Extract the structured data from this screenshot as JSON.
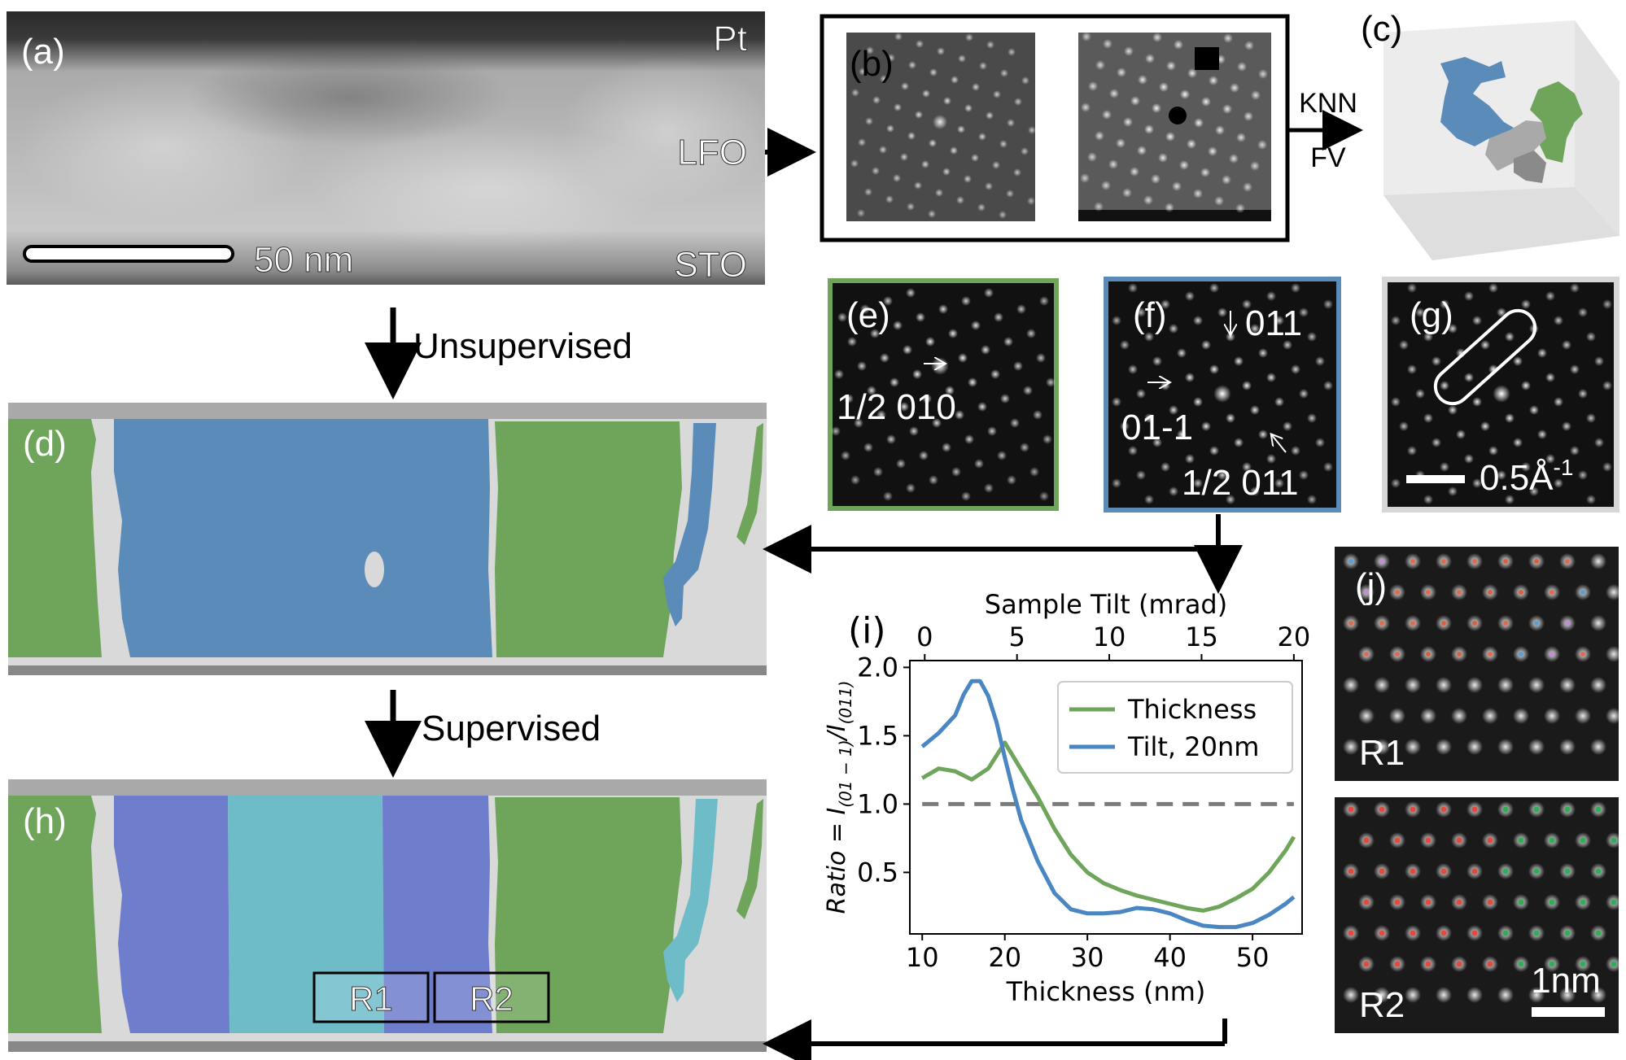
{
  "panels": {
    "a": {
      "tag": "(a)",
      "labels": {
        "pt": "Pt",
        "lfo": "LFO",
        "sto": "STO"
      },
      "scalebar": "50 nm"
    },
    "b": {
      "tag": "(b)",
      "arrow_top": "KNN",
      "arrow_bottom": "FV"
    },
    "c": {
      "tag": "(c)"
    },
    "d": {
      "tag": "(d)",
      "arrow_label": "Unsupervised"
    },
    "e": {
      "tag": "(e)",
      "annotation": "1/2 010"
    },
    "f": {
      "tag": "(f)",
      "annotations": [
        "011",
        "01-1",
        "1/2 011"
      ]
    },
    "g": {
      "tag": "(g)",
      "scalebar_num": "0.5",
      "scalebar_unit": "Å",
      "scalebar_exp": "-1"
    },
    "h": {
      "tag": "(h)",
      "arrow_label": "Supervised",
      "regions": [
        "R1",
        "R2"
      ]
    },
    "i": {
      "tag": "(i)"
    },
    "j": {
      "tag": "(j)",
      "labels": [
        "R1",
        "R2"
      ],
      "scalebar": "1nm"
    }
  },
  "colors": {
    "green": "#6ea55b",
    "blue": "#5b8cb9",
    "purple": "#6f7dcd",
    "cyan": "#6fbcc9",
    "gap": "#d9d9d9",
    "gray_line": "#7a7a7a"
  },
  "chart_data": {
    "type": "line",
    "xlabel": "Thickness (nm)",
    "xlabel_top": "Sample Tilt (mrad)",
    "ylabel_prefix": "Ratio = I",
    "ylabel_num_sub": "(01 − 1)",
    "ylabel_den": "/I",
    "ylabel_den_sub": "(011)",
    "xlim": [
      8.5,
      56
    ],
    "ylim": [
      0.05,
      2.05
    ],
    "x_ticks": [
      10,
      20,
      30,
      40,
      50
    ],
    "y_ticks": [
      0.5,
      1.0,
      1.5,
      2.0
    ],
    "top_ticks_mrad": [
      0,
      5,
      10,
      15,
      20
    ],
    "top_axis_map": {
      "mrad_0_at_thickness": 10.3,
      "mrad_20_at_thickness": 55.0
    },
    "reference_line": {
      "y": 1.0,
      "style": "dashed"
    },
    "legend": {
      "placement": "top-right"
    },
    "series": [
      {
        "name": "Thickness",
        "color": "#6ea55b",
        "x": [
          10,
          12,
          14,
          16,
          18,
          20,
          22,
          24,
          26,
          28,
          30,
          32,
          34,
          36,
          38,
          40,
          42,
          44,
          46,
          48,
          50,
          52,
          54,
          55
        ],
        "y": [
          1.19,
          1.26,
          1.24,
          1.18,
          1.26,
          1.45,
          1.25,
          1.05,
          0.82,
          0.63,
          0.5,
          0.42,
          0.37,
          0.33,
          0.3,
          0.27,
          0.24,
          0.22,
          0.25,
          0.31,
          0.38,
          0.5,
          0.66,
          0.76
        ]
      },
      {
        "name": "Tilt, 20nm",
        "color": "#4a86c1",
        "x": [
          10,
          12,
          14,
          15,
          16,
          17,
          18,
          19,
          20,
          21,
          22,
          24,
          26,
          28,
          30,
          32,
          34,
          36,
          38,
          40,
          42,
          44,
          46,
          48,
          50,
          52,
          54,
          55
        ],
        "y": [
          1.42,
          1.52,
          1.65,
          1.8,
          1.9,
          1.9,
          1.79,
          1.6,
          1.34,
          1.1,
          0.88,
          0.58,
          0.35,
          0.23,
          0.2,
          0.2,
          0.21,
          0.24,
          0.23,
          0.2,
          0.15,
          0.11,
          0.1,
          0.1,
          0.13,
          0.19,
          0.27,
          0.32
        ]
      }
    ]
  }
}
